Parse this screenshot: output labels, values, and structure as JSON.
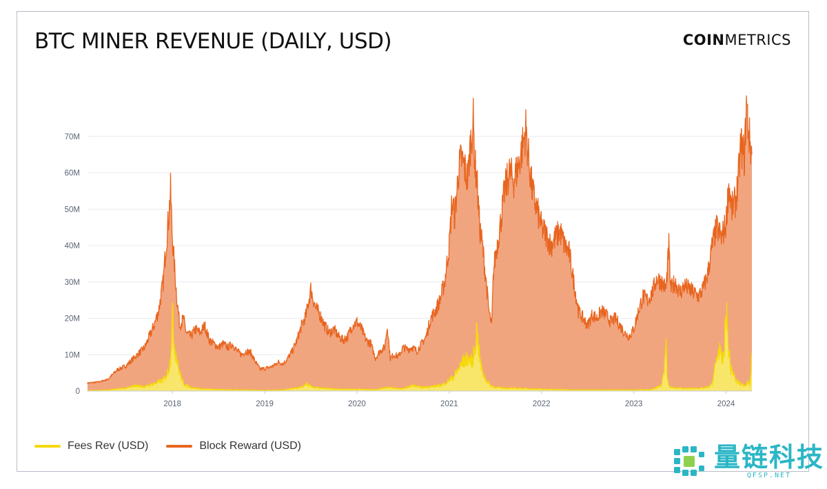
{
  "brand": {
    "part1": "COIN",
    "part2": "METRICS"
  },
  "colors": {
    "block_reward_line": "#e8651f",
    "block_reward_fill": "#f1a57f",
    "fees_line": "#f5d90a",
    "fees_fill": "#f8e66a",
    "axis_text": "#5b6474",
    "grid": "#ececf1",
    "watermark": "#2bb6c6"
  },
  "watermark": {
    "text_cn": "量链科技",
    "text_en": "QFSP.NET",
    "logo_icon": "puzzle-chain-icon",
    "plot_watermark_icon": "cm-monogram-icon"
  },
  "chart_data": {
    "type": "area",
    "title": "BTC MINER REVENUE (DAILY, USD)",
    "xlabel": "",
    "ylabel": "",
    "xlim": [
      2017.08,
      2024.28
    ],
    "ylim": [
      0,
      80
    ],
    "y_unit": "M",
    "yticks": [
      0,
      10,
      20,
      30,
      40,
      50,
      60,
      70
    ],
    "ytick_labels": [
      "0",
      "10M",
      "20M",
      "30M",
      "40M",
      "50M",
      "60M",
      "70M"
    ],
    "xticks": [
      2018,
      2019,
      2020,
      2021,
      2022,
      2023,
      2024
    ],
    "xtick_labels": [
      "2018",
      "2019",
      "2020",
      "2021",
      "2022",
      "2023",
      "2024"
    ],
    "grid": "horizontal",
    "legend_position": "bottom-left",
    "series": [
      {
        "name": "Block Reward (USD)",
        "x": [
          2017.08,
          2017.2,
          2017.3,
          2017.4,
          2017.5,
          2017.6,
          2017.7,
          2017.8,
          2017.85,
          2017.9,
          2017.93,
          2017.96,
          2017.98,
          2018.0,
          2018.02,
          2018.05,
          2018.08,
          2018.12,
          2018.15,
          2018.2,
          2018.25,
          2018.3,
          2018.35,
          2018.4,
          2018.45,
          2018.5,
          2018.55,
          2018.6,
          2018.65,
          2018.7,
          2018.75,
          2018.8,
          2018.85,
          2018.9,
          2018.95,
          2019.0,
          2019.05,
          2019.1,
          2019.15,
          2019.2,
          2019.25,
          2019.3,
          2019.35,
          2019.4,
          2019.45,
          2019.5,
          2019.55,
          2019.6,
          2019.65,
          2019.7,
          2019.75,
          2019.8,
          2019.85,
          2019.9,
          2019.95,
          2020.0,
          2020.05,
          2020.1,
          2020.15,
          2020.2,
          2020.25,
          2020.3,
          2020.33,
          2020.36,
          2020.4,
          2020.45,
          2020.5,
          2020.55,
          2020.6,
          2020.65,
          2020.7,
          2020.75,
          2020.8,
          2020.85,
          2020.9,
          2020.95,
          2021.0,
          2021.03,
          2021.06,
          2021.1,
          2021.13,
          2021.16,
          2021.2,
          2021.23,
          2021.26,
          2021.28,
          2021.3,
          2021.33,
          2021.36,
          2021.4,
          2021.43,
          2021.46,
          2021.48,
          2021.5,
          2021.55,
          2021.6,
          2021.65,
          2021.7,
          2021.75,
          2021.8,
          2021.83,
          2021.86,
          2021.9,
          2021.95,
          2022.0,
          2022.05,
          2022.1,
          2022.15,
          2022.2,
          2022.25,
          2022.3,
          2022.35,
          2022.4,
          2022.45,
          2022.5,
          2022.55,
          2022.6,
          2022.65,
          2022.7,
          2022.75,
          2022.8,
          2022.85,
          2022.9,
          2022.95,
          2023.0,
          2023.05,
          2023.1,
          2023.15,
          2023.2,
          2023.25,
          2023.3,
          2023.35,
          2023.38,
          2023.4,
          2023.45,
          2023.5,
          2023.55,
          2023.6,
          2023.65,
          2023.7,
          2023.75,
          2023.8,
          2023.85,
          2023.9,
          2023.95,
          2024.0,
          2024.03,
          2024.06,
          2024.1,
          2024.13,
          2024.16,
          2024.2,
          2024.22,
          2024.25,
          2024.28
        ],
        "values": [
          2.2,
          2.5,
          3.2,
          5.8,
          7.0,
          9.5,
          12.0,
          18.0,
          22.0,
          30.0,
          40.0,
          48.0,
          55.0,
          42.0,
          35.0,
          25.0,
          18.0,
          20.0,
          16.0,
          15.0,
          17.0,
          16.0,
          18.0,
          14.0,
          13.0,
          12.0,
          13.0,
          12.0,
          13.0,
          11.0,
          10.0,
          11.0,
          10.5,
          8.0,
          6.0,
          6.2,
          6.5,
          7.0,
          8.0,
          7.5,
          9.0,
          11.0,
          14.0,
          18.0,
          21.0,
          28.0,
          23.0,
          21.0,
          18.0,
          16.0,
          17.0,
          15.0,
          14.0,
          15.0,
          18.0,
          19.0,
          17.0,
          14.0,
          13.0,
          9.0,
          11.0,
          12.0,
          18.0,
          9.0,
          10.0,
          9.5,
          12.0,
          11.5,
          12.0,
          11.0,
          13.0,
          15.0,
          20.0,
          22.0,
          25.0,
          30.0,
          40.0,
          52.0,
          48.0,
          60.0,
          64.0,
          62.0,
          58.0,
          68.0,
          74.0,
          62.0,
          58.0,
          45.0,
          40.0,
          30.0,
          22.0,
          18.0,
          33.0,
          37.0,
          45.0,
          55.0,
          60.0,
          58.0,
          62.0,
          68.0,
          72.0,
          64.0,
          55.0,
          50.0,
          45.0,
          43.0,
          40.0,
          42.0,
          44.0,
          40.0,
          38.0,
          30.0,
          22.0,
          20.0,
          18.0,
          21.0,
          20.0,
          22.0,
          21.0,
          19.0,
          20.0,
          18.0,
          16.0,
          15.0,
          17.0,
          22.0,
          26.0,
          25.0,
          27.0,
          31.0,
          30.0,
          28.0,
          40.0,
          28.0,
          30.0,
          27.0,
          29.0,
          28.0,
          27.0,
          26.0,
          28.0,
          32.0,
          40.0,
          45.0,
          42.0,
          46.0,
          57.0,
          50.0,
          52.0,
          57.0,
          68.0,
          64.0,
          79.0,
          70.0,
          65.0
        ]
      },
      {
        "name": "Fees Rev (USD)",
        "x": [
          2017.08,
          2017.3,
          2017.5,
          2017.6,
          2017.7,
          2017.8,
          2017.85,
          2017.9,
          2017.93,
          2017.96,
          2017.98,
          2018.0,
          2018.02,
          2018.04,
          2018.06,
          2018.09,
          2018.12,
          2018.2,
          2018.3,
          2018.5,
          2018.8,
          2019.0,
          2019.2,
          2019.4,
          2019.45,
          2019.5,
          2019.6,
          2019.8,
          2020.0,
          2020.2,
          2020.33,
          2020.4,
          2020.5,
          2020.6,
          2020.7,
          2020.8,
          2020.9,
          2020.95,
          2021.0,
          2021.05,
          2021.1,
          2021.15,
          2021.2,
          2021.25,
          2021.28,
          2021.3,
          2021.33,
          2021.36,
          2021.4,
          2021.45,
          2021.5,
          2021.6,
          2021.8,
          2022.0,
          2022.2,
          2022.4,
          2022.6,
          2022.8,
          2023.0,
          2023.2,
          2023.3,
          2023.33,
          2023.35,
          2023.36,
          2023.38,
          2023.4,
          2023.45,
          2023.6,
          2023.75,
          2023.8,
          2023.83,
          2023.85,
          2023.87,
          2023.9,
          2023.93,
          2023.95,
          2023.98,
          2024.0,
          2024.02,
          2024.05,
          2024.08,
          2024.1,
          2024.15,
          2024.2,
          2024.24,
          2024.26,
          2024.28
        ],
        "values": [
          0.1,
          0.3,
          0.8,
          1.5,
          1.2,
          2.0,
          2.5,
          3.0,
          4.0,
          6.0,
          9.0,
          21.0,
          13.0,
          10.0,
          7.0,
          4.0,
          2.0,
          1.0,
          0.6,
          0.4,
          0.3,
          0.2,
          0.3,
          1.0,
          2.0,
          1.2,
          0.8,
          0.5,
          0.5,
          0.4,
          1.0,
          0.8,
          0.6,
          1.5,
          1.0,
          1.2,
          1.5,
          2.0,
          3.0,
          4.0,
          6.0,
          8.0,
          9.0,
          8.0,
          12.0,
          17.0,
          9.0,
          5.0,
          3.0,
          1.5,
          1.0,
          0.8,
          0.7,
          0.5,
          0.4,
          0.3,
          0.3,
          0.3,
          0.3,
          0.4,
          1.5,
          6.0,
          17.0,
          4.0,
          1.5,
          1.0,
          0.8,
          0.7,
          0.8,
          1.0,
          1.5,
          2.0,
          5.0,
          9.0,
          12.0,
          8.0,
          10.0,
          24.0,
          14.0,
          6.0,
          5.0,
          3.0,
          2.0,
          1.5,
          2.5,
          1.5,
          10.0
        ]
      }
    ]
  }
}
